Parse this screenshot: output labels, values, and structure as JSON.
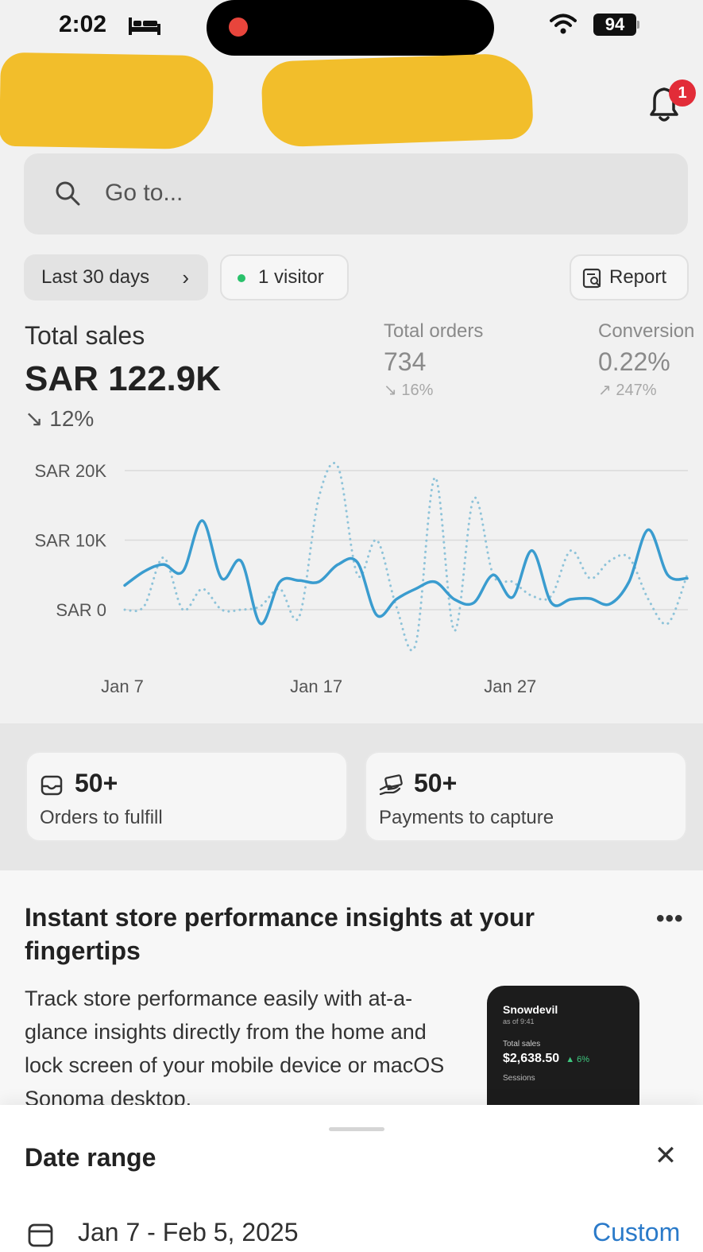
{
  "status_bar": {
    "time": "2:02",
    "battery": "94"
  },
  "header": {
    "notification_count": "1"
  },
  "search": {
    "placeholder": "Go to..."
  },
  "filters": {
    "date_range": "Last 30 days",
    "visitors": "1 visitor",
    "report": "Report"
  },
  "metrics": {
    "total_sales": {
      "label": "Total sales",
      "value": "SAR 122.9K",
      "change": "12%"
    },
    "total_orders": {
      "label": "Total orders",
      "value": "734",
      "change": "16%"
    },
    "conversion": {
      "label": "Conversion",
      "value": "0.22%",
      "change": "247%"
    }
  },
  "chart_data": {
    "type": "line",
    "y_ticks": [
      "SAR 20K",
      "SAR 10K",
      "SAR 0"
    ],
    "x_ticks": [
      "Jan 7",
      "Jan 17",
      "Jan 27"
    ],
    "ylim": [
      0,
      20000
    ],
    "grid": true,
    "series": [
      {
        "style": "solid",
        "color": "#3a9ccf",
        "x": [
          "Jan 7",
          "Jan 8",
          "Jan 9",
          "Jan 10",
          "Jan 11",
          "Jan 12",
          "Jan 13",
          "Jan 14",
          "Jan 15",
          "Jan 16",
          "Jan 17",
          "Jan 18",
          "Jan 19",
          "Jan 20",
          "Jan 21",
          "Jan 22",
          "Jan 23",
          "Jan 24",
          "Jan 25",
          "Jan 26",
          "Jan 27",
          "Jan 28",
          "Jan 29",
          "Jan 30",
          "Jan 31",
          "Feb 1",
          "Feb 2",
          "Feb 3",
          "Feb 4",
          "Feb 5"
        ],
        "values": [
          3500,
          5500,
          6500,
          5500,
          12800,
          4500,
          7000,
          -2000,
          4000,
          4200,
          4000,
          6500,
          6800,
          -800,
          1500,
          3000,
          4000,
          1500,
          1000,
          5000,
          1800,
          8500,
          1000,
          1500,
          1600,
          800,
          4000,
          11500,
          5000,
          4500
        ]
      },
      {
        "style": "dotted",
        "color": "#8ec3d9",
        "x": [
          "Jan 7",
          "Jan 8",
          "Jan 9",
          "Jan 10",
          "Jan 11",
          "Jan 12",
          "Jan 13",
          "Jan 14",
          "Jan 15",
          "Jan 16",
          "Jan 17",
          "Jan 18",
          "Jan 19",
          "Jan 20",
          "Jan 21",
          "Jan 22",
          "Jan 23",
          "Jan 24",
          "Jan 25",
          "Jan 26",
          "Jan 27",
          "Jan 28",
          "Jan 29",
          "Jan 30",
          "Jan 31",
          "Feb 1",
          "Feb 2",
          "Feb 3",
          "Feb 4",
          "Feb 5"
        ],
        "values": [
          0,
          500,
          7500,
          0,
          3000,
          0,
          0,
          500,
          3000,
          -1000,
          16000,
          20500,
          5000,
          10000,
          500,
          -5000,
          19000,
          -3000,
          16000,
          5000,
          4000,
          2000,
          2000,
          8500,
          4500,
          7000,
          7500,
          1500,
          -2000,
          5000
        ]
      }
    ]
  },
  "action_cards": [
    {
      "value": "50+",
      "label": "Orders to fulfill",
      "icon": "inbox-icon"
    },
    {
      "value": "50+",
      "label": "Payments to capture",
      "icon": "hand-card-icon"
    }
  ],
  "insight": {
    "title": "Instant store performance insights at your fingertips",
    "body": "Track store performance easily with at-a-glance insights directly from the home and lock screen of your mobile device or macOS Sonoma desktop.",
    "widget": {
      "store": "Snowdevil",
      "as_of": "as of 9:41",
      "label": "Total sales",
      "value": "$2,638.50",
      "change": "6%",
      "sessions": "Sessions"
    }
  },
  "sheet": {
    "title": "Date range",
    "value": "Jan 7 - Feb 5, 2025",
    "custom": "Custom"
  },
  "colors": {
    "accent": "#2a7ac9",
    "line": "#3a9ccf",
    "badge": "#e22c38",
    "online_dot": "#29c16b"
  }
}
